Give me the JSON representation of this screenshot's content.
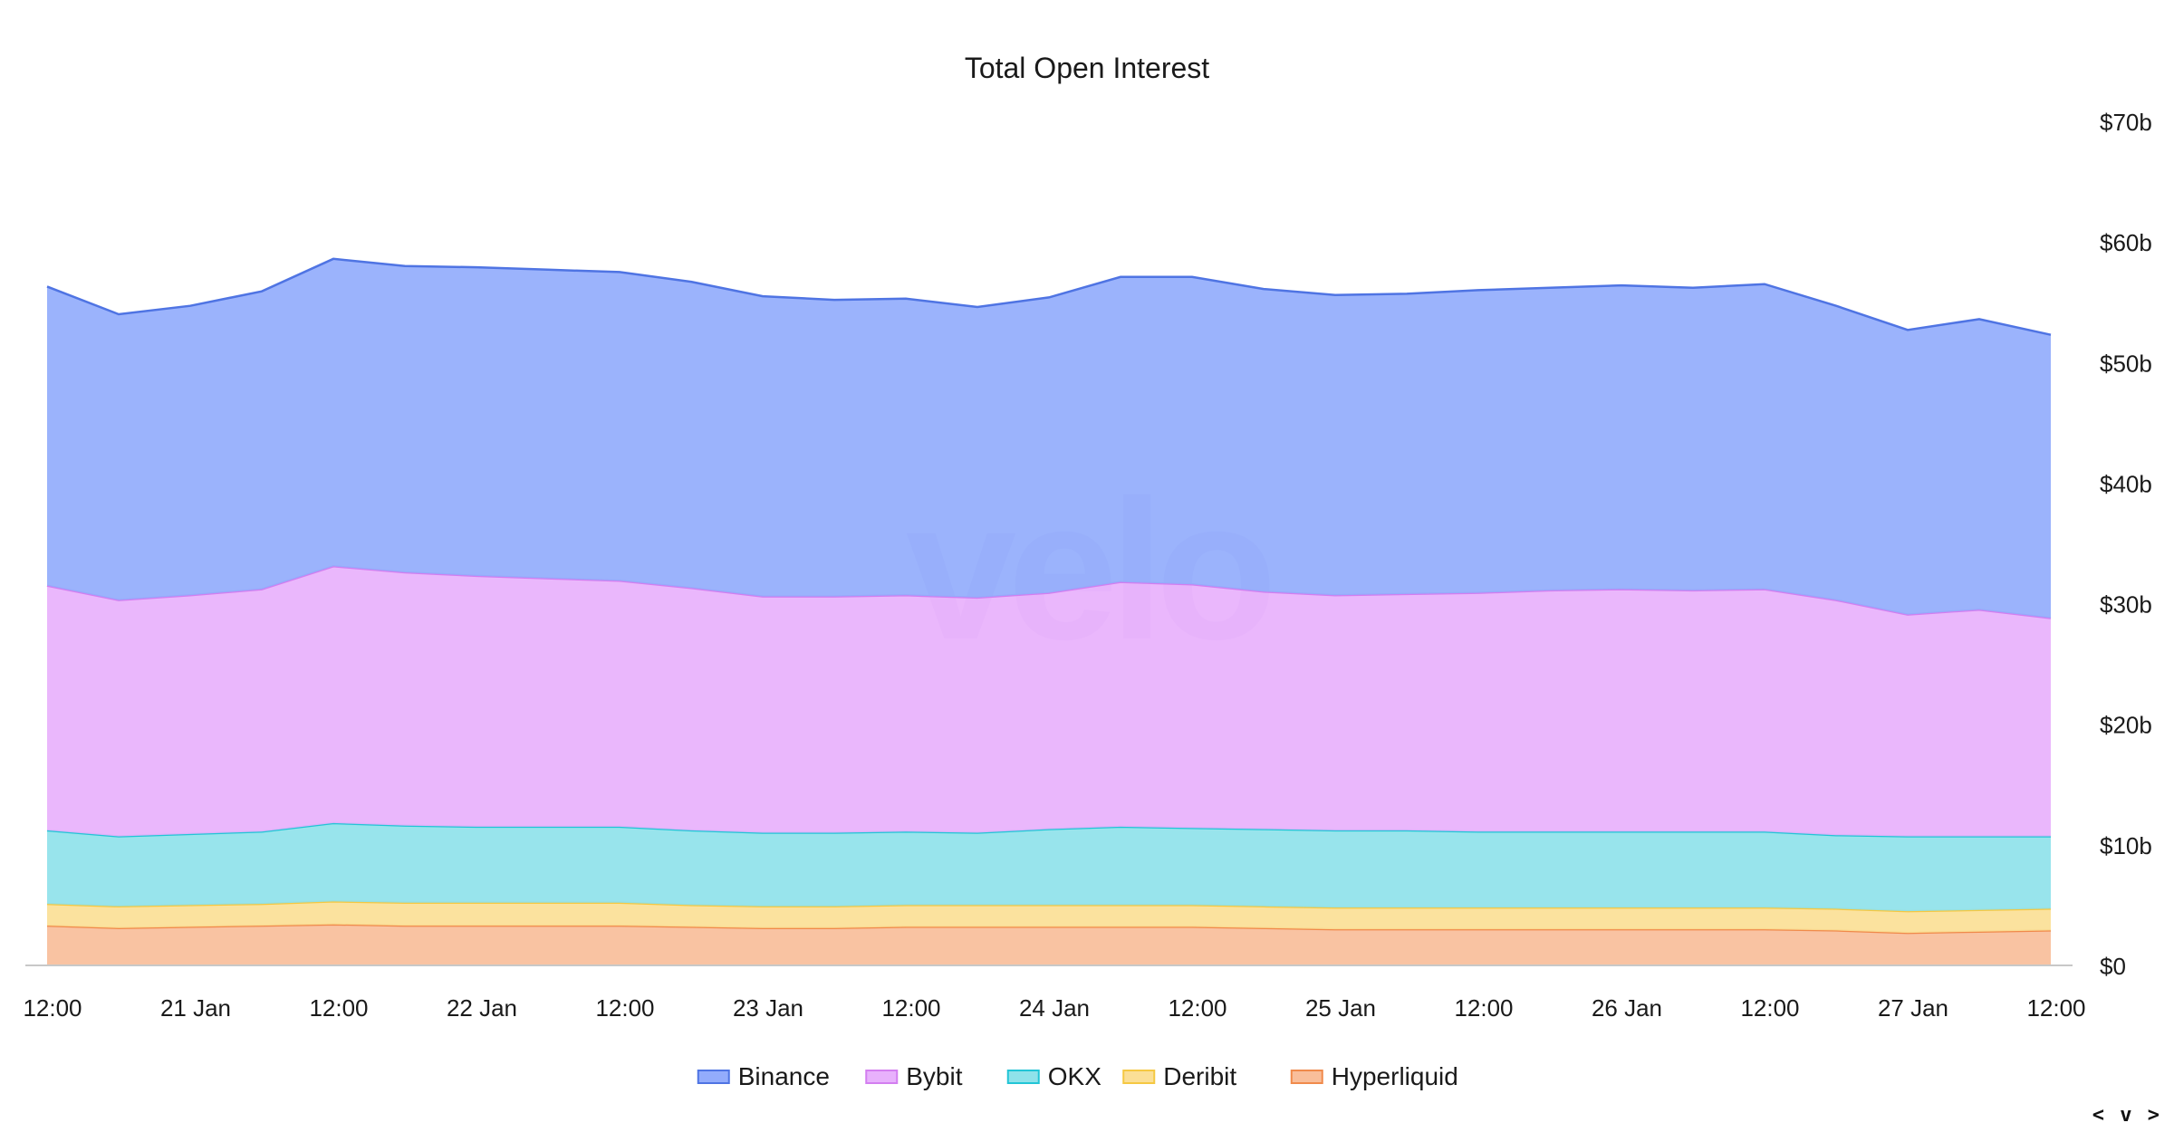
{
  "watermark": "velo",
  "nav": {
    "prev": "<",
    "toggle": "v",
    "next": ">"
  },
  "chart_data": {
    "type": "area",
    "stacked": true,
    "title": "Total Open Interest",
    "ylim": [
      0,
      70
    ],
    "y_ticks": [
      0,
      10,
      20,
      30,
      40,
      50,
      60,
      70
    ],
    "y_tick_labels": [
      "$0",
      "$10b",
      "$20b",
      "$30b",
      "$40b",
      "$50b",
      "$60b",
      "$70b"
    ],
    "y_axis_side": "right",
    "x_range": [
      "2025-01-20T12:00",
      "2025-01-27T12:00"
    ],
    "x_tick_labels": [
      "12:00",
      "21 Jan",
      "12:00",
      "22 Jan",
      "12:00",
      "23 Jan",
      "12:00",
      "24 Jan",
      "12:00",
      "25 Jan",
      "12:00",
      "26 Jan",
      "12:00",
      "27 Jan",
      "12:00"
    ],
    "legend_position": "bottom-center",
    "grid": false,
    "x": [
      "2025-01-20T12:00",
      "2025-01-20T18:00",
      "2025-01-21T00:00",
      "2025-01-21T06:00",
      "2025-01-21T12:00",
      "2025-01-21T18:00",
      "2025-01-22T00:00",
      "2025-01-22T06:00",
      "2025-01-22T12:00",
      "2025-01-22T18:00",
      "2025-01-23T00:00",
      "2025-01-23T06:00",
      "2025-01-23T12:00",
      "2025-01-23T18:00",
      "2025-01-24T00:00",
      "2025-01-24T06:00",
      "2025-01-24T12:00",
      "2025-01-24T18:00",
      "2025-01-25T00:00",
      "2025-01-25T06:00",
      "2025-01-25T12:00",
      "2025-01-25T18:00",
      "2025-01-26T00:00",
      "2025-01-26T06:00",
      "2025-01-26T12:00",
      "2025-01-26T18:00",
      "2025-01-27T00:00",
      "2025-01-27T06:00",
      "2025-01-27T12:00"
    ],
    "series": [
      {
        "name": "Hyperliquid",
        "color": "#f08a4b",
        "fill": "#f9be9a",
        "values": [
          3.3,
          3.1,
          3.2,
          3.3,
          3.4,
          3.3,
          3.3,
          3.3,
          3.3,
          3.2,
          3.1,
          3.1,
          3.2,
          3.2,
          3.2,
          3.2,
          3.2,
          3.1,
          3.0,
          3.0,
          3.0,
          3.0,
          3.0,
          3.0,
          3.0,
          2.9,
          2.7,
          2.8,
          2.9
        ]
      },
      {
        "name": "Deribit",
        "color": "#f5c842",
        "fill": "#fbdf96",
        "values": [
          1.8,
          1.8,
          1.8,
          1.8,
          1.9,
          1.9,
          1.9,
          1.9,
          1.9,
          1.8,
          1.8,
          1.8,
          1.8,
          1.8,
          1.8,
          1.8,
          1.8,
          1.8,
          1.8,
          1.8,
          1.8,
          1.8,
          1.8,
          1.8,
          1.8,
          1.8,
          1.8,
          1.8,
          1.8
        ]
      },
      {
        "name": "OKX",
        "color": "#22c5d6",
        "fill": "#8fe2ea",
        "values": [
          6.1,
          5.8,
          5.9,
          6.0,
          6.5,
          6.4,
          6.3,
          6.3,
          6.3,
          6.2,
          6.1,
          6.1,
          6.1,
          6.0,
          6.3,
          6.5,
          6.4,
          6.4,
          6.4,
          6.4,
          6.3,
          6.3,
          6.3,
          6.3,
          6.3,
          6.1,
          6.2,
          6.1,
          6.0
        ]
      },
      {
        "name": "Bybit",
        "color": "#d37ef0",
        "fill": "#e8b1fc",
        "values": [
          20.3,
          19.6,
          19.8,
          20.1,
          21.3,
          21.0,
          20.8,
          20.6,
          20.4,
          20.1,
          19.6,
          19.6,
          19.6,
          19.5,
          19.6,
          20.3,
          20.2,
          19.7,
          19.5,
          19.6,
          19.8,
          20.0,
          20.1,
          20.0,
          20.1,
          19.5,
          18.4,
          18.8,
          18.1
        ]
      },
      {
        "name": "Binance",
        "color": "#4f74e3",
        "fill": "#93acfc",
        "values": [
          24.8,
          23.7,
          24.0,
          24.7,
          25.5,
          25.4,
          25.6,
          25.6,
          25.6,
          25.4,
          24.9,
          24.6,
          24.6,
          24.1,
          24.5,
          25.3,
          25.5,
          25.1,
          24.9,
          24.9,
          25.1,
          25.1,
          25.2,
          25.1,
          25.3,
          24.4,
          23.6,
          24.1,
          23.5
        ]
      }
    ]
  }
}
